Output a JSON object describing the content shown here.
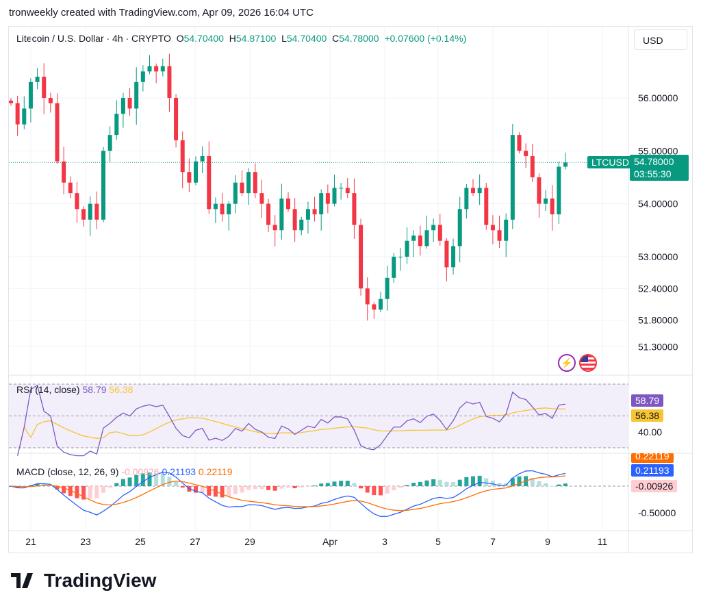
{
  "credit": "tronweekly created with TradingView.com, Apr 09, 2026 16:04 UTC",
  "header": {
    "symbol": "Litecoin / U.S. Dollar · 4h · CRYPTO",
    "o_label": "O",
    "o": "54.70400",
    "h_label": "H",
    "h": "54.87100",
    "l_label": "L",
    "l": "54.70400",
    "c_label": "C",
    "c": "54.78000",
    "change": "+0.07600 (+0.14%)"
  },
  "currency_button": "USD",
  "ticker_label": "LTCUSD",
  "last_price": "54.78000",
  "countdown": "03:55:30",
  "rsi": {
    "label": "RSI (14, close)",
    "value": "58.79",
    "ma": "56.38",
    "axis": "40.00"
  },
  "macd": {
    "label": "MACD (close, 12, 26, 9)",
    "hist": "-0.00926",
    "macd": "0.21193",
    "signal": "0.22119",
    "axis": "-0.50000"
  },
  "logo": "TradingView",
  "colors": {
    "up": "#089981",
    "down": "#f23645",
    "rsi": "#7e57c2",
    "rsi_ma": "#f7c531",
    "macd": "#2962ff",
    "signal": "#ff6d00"
  },
  "chart_data": {
    "type": "candlestick",
    "price_ticks": [
      "56.00000",
      "55.00000",
      "54.00000",
      "53.00000",
      "52.40000",
      "51.80000",
      "51.30000"
    ],
    "x_ticks": [
      "21",
      "23",
      "25",
      "27",
      "29",
      "Apr",
      "3",
      "5",
      "7",
      "9",
      "11"
    ],
    "closes": [
      55.9,
      55.5,
      55.8,
      56.3,
      56.4,
      56.0,
      55.9,
      54.8,
      54.4,
      54.2,
      53.9,
      53.7,
      54.0,
      53.7,
      55.0,
      55.3,
      55.7,
      56.0,
      55.8,
      56.3,
      56.5,
      56.6,
      56.5,
      56.6,
      56.0,
      55.2,
      54.6,
      54.4,
      54.8,
      54.9,
      53.9,
      54.0,
      53.8,
      54.0,
      54.4,
      54.2,
      54.6,
      54.2,
      54.0,
      53.6,
      53.5,
      54.1,
      53.9,
      53.5,
      53.7,
      53.9,
      53.8,
      54.2,
      54.0,
      54.3,
      54.3,
      54.2,
      53.6,
      52.4,
      52.1,
      52.0,
      52.2,
      52.6,
      53.0,
      53.0,
      53.3,
      53.4,
      53.2,
      53.5,
      53.6,
      53.3,
      52.8,
      53.2,
      53.9,
      54.3,
      54.2,
      54.3,
      53.6,
      53.5,
      53.3,
      53.7,
      55.3,
      55.0,
      54.9,
      54.5,
      54.0,
      54.1,
      53.8,
      54.7,
      54.78
    ]
  }
}
